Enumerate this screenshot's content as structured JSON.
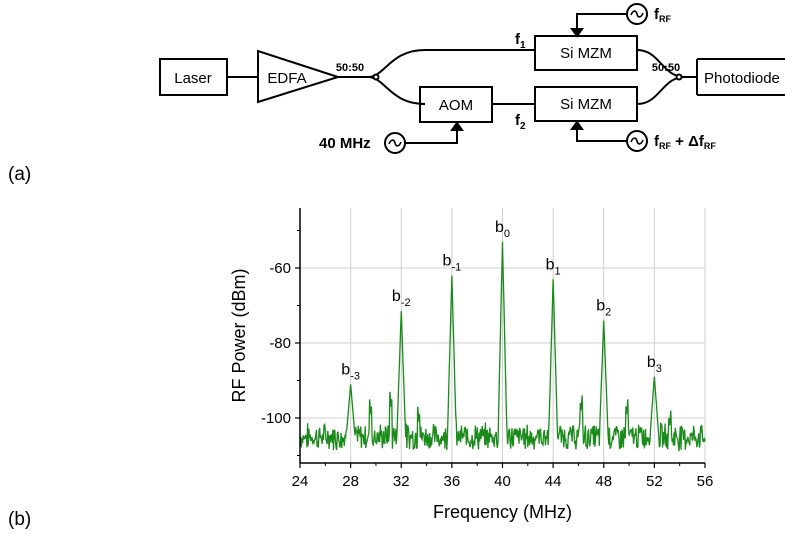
{
  "figure": {
    "panel_a": "(a)",
    "panel_b": "(b)"
  },
  "setup": {
    "laser": "Laser",
    "edfa": "EDFA",
    "splitter": "50:50",
    "combiner": "50:50",
    "mzm_top": "Si MZM",
    "mzm_bottom": "Si MZM",
    "aom": "AOM",
    "photodiode": "Photodiode",
    "f1": "f",
    "f1_sub": "1",
    "f2": "f",
    "f2_sub": "2",
    "aom_drive": "40 MHz",
    "rf_top": "f",
    "rf_top_sub": "RF",
    "rf_bottom_main": "f",
    "rf_bottom_sub": "RF",
    "rf_bottom_plus": " + Δf",
    "rf_bottom_sub2": "RF",
    "source_symbol": "~"
  },
  "chart_data": {
    "type": "line",
    "xlabel": "Frequency (MHz)",
    "ylabel": "RF Power (dBm)",
    "xlim": [
      24,
      56
    ],
    "ylim": [
      -112,
      -44
    ],
    "xticks": [
      24,
      28,
      32,
      36,
      40,
      44,
      48,
      52,
      56
    ],
    "yticks": [
      -60,
      -80,
      -100
    ],
    "grid": true,
    "line_color": "#1a8a1a",
    "noise_floor": -105,
    "peaks": [
      {
        "label": "b",
        "sub": "-3",
        "x": 28,
        "y": -91
      },
      {
        "label": "b",
        "sub": "-2",
        "x": 32,
        "y": -71.5
      },
      {
        "label": "b",
        "sub": "-1",
        "x": 36,
        "y": -62
      },
      {
        "label": "b",
        "sub": "0",
        "x": 40,
        "y": -53
      },
      {
        "label": "b",
        "sub": "1",
        "x": 44,
        "y": -63
      },
      {
        "label": "b",
        "sub": "2",
        "x": 48,
        "y": -74
      },
      {
        "label": "b",
        "sub": "3",
        "x": 52,
        "y": -89
      }
    ],
    "minor_spurs": [
      {
        "x": 29.6,
        "y": -99
      },
      {
        "x": 31.2,
        "y": -97
      },
      {
        "x": 33.4,
        "y": -101
      },
      {
        "x": 46.2,
        "y": -98
      },
      {
        "x": 49.8,
        "y": -99
      },
      {
        "x": 53.2,
        "y": -102
      }
    ]
  }
}
